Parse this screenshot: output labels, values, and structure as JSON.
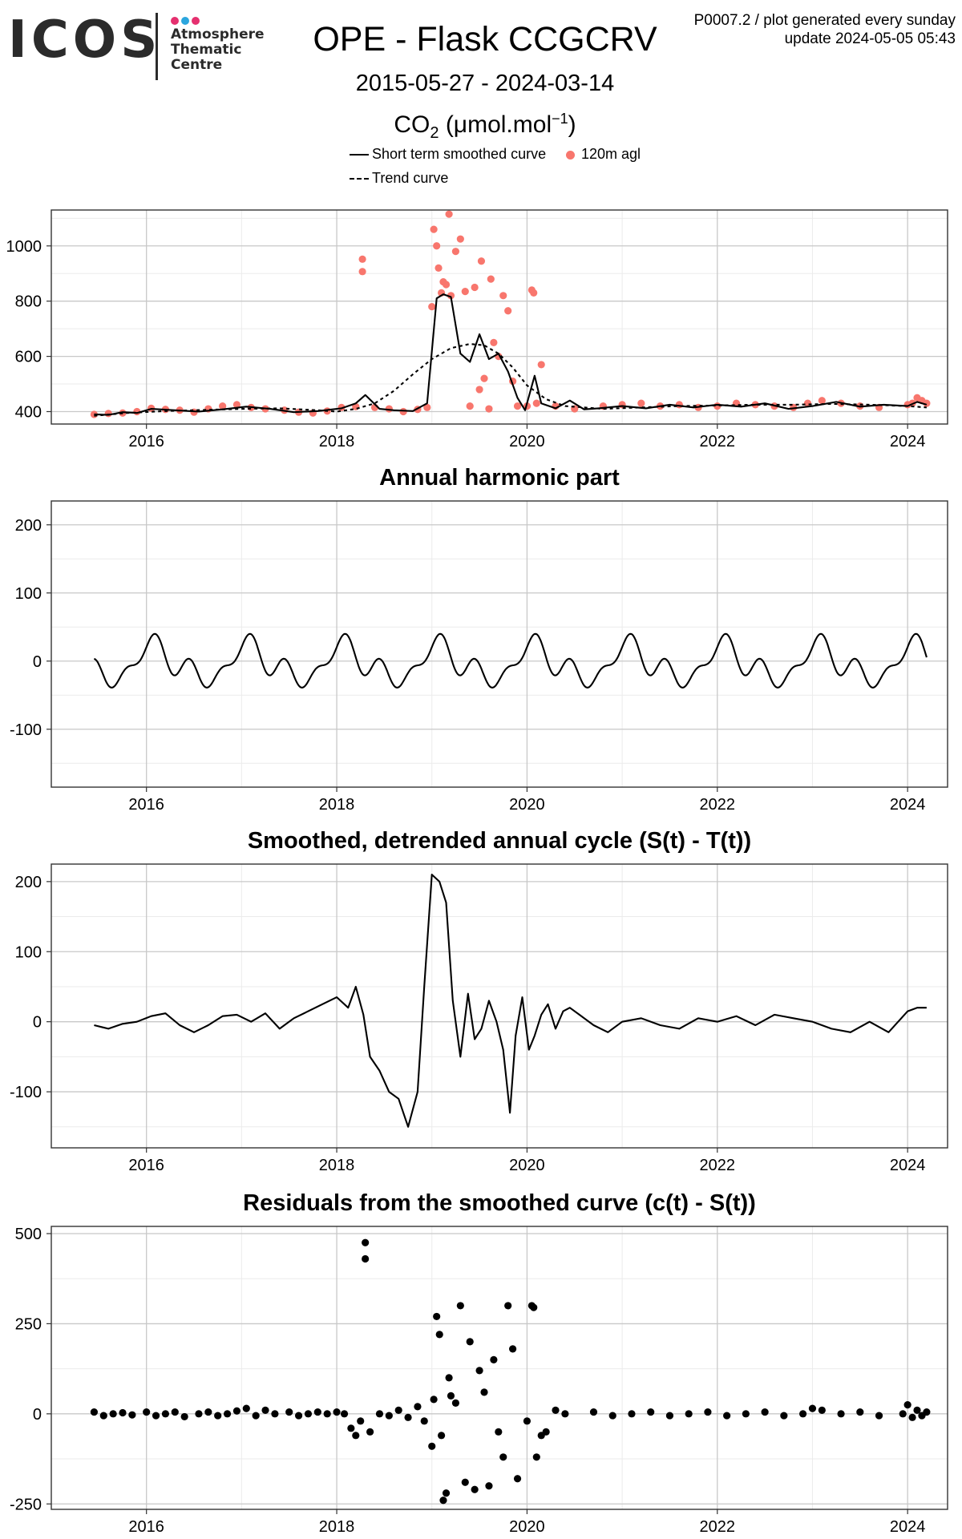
{
  "logo": {
    "word": "ICOS",
    "sub": [
      "Atmosphere",
      "Thematic",
      "Centre"
    ],
    "dot_colors": [
      "#E5306F",
      "#2BA6DE",
      "#E5306F"
    ]
  },
  "header": {
    "title": "OPE - Flask CCGCRV",
    "date_range": "2015-05-27 - 2024-03-14",
    "corner_line1": "P0007.2 / plot generated every sunday",
    "corner_line2": "update  2024-05-05 05:43",
    "unit_prefix": "CO",
    "unit_sub": "2",
    "unit_open": " (μmol.mol",
    "unit_sup": "−1",
    "unit_close": ")"
  },
  "legend": {
    "smooth_label": "Short term smoothed curve",
    "points_label": "120m agl",
    "trend_label": "Trend curve"
  },
  "colors": {
    "points": "#F8766D",
    "line": "#000000",
    "grid_major": "#c8c8c8",
    "grid_minor": "#ebebeb"
  },
  "chart_data": [
    {
      "type": "scatter",
      "panel": "co2",
      "title": "",
      "xlabel": "",
      "ylabel": "",
      "xlim": [
        2015.0,
        2024.42
      ],
      "ylim": [
        355,
        1130
      ],
      "x_ticks": [
        2016,
        2018,
        2020,
        2022,
        2024
      ],
      "y_ticks": [
        400,
        600,
        800,
        1000
      ],
      "grid": true,
      "legend_position": "top",
      "series": [
        {
          "name": "120m agl",
          "kind": "points",
          "x": [
            2015.45,
            2015.6,
            2015.75,
            2015.9,
            2016.05,
            2016.2,
            2016.35,
            2016.5,
            2016.65,
            2016.8,
            2016.95,
            2017.1,
            2017.25,
            2017.45,
            2017.6,
            2017.75,
            2017.9,
            2018.05,
            2018.2,
            2018.27,
            2018.27,
            2018.4,
            2018.55,
            2018.7,
            2018.85,
            2018.95,
            2019.0,
            2019.02,
            2019.05,
            2019.07,
            2019.1,
            2019.12,
            2019.15,
            2019.18,
            2019.2,
            2019.25,
            2019.3,
            2019.35,
            2019.4,
            2019.45,
            2019.5,
            2019.52,
            2019.55,
            2019.6,
            2019.62,
            2019.65,
            2019.7,
            2019.75,
            2019.8,
            2019.85,
            2019.9,
            2020.0,
            2020.05,
            2020.07,
            2020.1,
            2020.15,
            2020.3,
            2020.5,
            2020.8,
            2021.0,
            2021.2,
            2021.4,
            2021.6,
            2021.8,
            2022.0,
            2022.2,
            2022.4,
            2022.6,
            2022.8,
            2022.95,
            2023.1,
            2023.3,
            2023.5,
            2023.7,
            2024.0,
            2024.05,
            2024.1,
            2024.15,
            2024.2
          ],
          "y": [
            390,
            393,
            395,
            400,
            412,
            408,
            405,
            398,
            410,
            420,
            425,
            415,
            410,
            405,
            398,
            395,
            402,
            415,
            418,
            952,
            907,
            415,
            410,
            400,
            408,
            415,
            780,
            1060,
            1000,
            920,
            830,
            870,
            860,
            1115,
            820,
            980,
            1025,
            835,
            420,
            850,
            480,
            945,
            520,
            410,
            880,
            650,
            600,
            820,
            765,
            510,
            420,
            420,
            840,
            830,
            430,
            570,
            420,
            410,
            420,
            425,
            430,
            420,
            425,
            415,
            420,
            430,
            425,
            420,
            415,
            430,
            440,
            430,
            420,
            415,
            425,
            430,
            450,
            440,
            430
          ]
        },
        {
          "name": "Short term smoothed curve",
          "kind": "line",
          "x": [
            2015.45,
            2015.6,
            2015.75,
            2015.9,
            2016.05,
            2016.3,
            2016.55,
            2016.8,
            2017.05,
            2017.3,
            2017.55,
            2017.8,
            2018.05,
            2018.2,
            2018.3,
            2018.45,
            2018.6,
            2018.8,
            2018.95,
            2019.05,
            2019.12,
            2019.2,
            2019.3,
            2019.4,
            2019.5,
            2019.6,
            2019.7,
            2019.8,
            2019.9,
            2019.98,
            2020.08,
            2020.15,
            2020.3,
            2020.45,
            2020.6,
            2020.75,
            2021.0,
            2021.25,
            2021.5,
            2021.75,
            2022.0,
            2022.25,
            2022.5,
            2022.75,
            2023.0,
            2023.25,
            2023.5,
            2023.75,
            2024.0,
            2024.1,
            2024.2
          ],
          "y": [
            390,
            388,
            398,
            395,
            410,
            405,
            400,
            408,
            418,
            410,
            398,
            402,
            412,
            430,
            460,
            410,
            405,
            402,
            430,
            810,
            825,
            815,
            610,
            580,
            680,
            590,
            610,
            545,
            450,
            405,
            530,
            430,
            412,
            440,
            408,
            412,
            420,
            412,
            425,
            415,
            425,
            418,
            430,
            410,
            420,
            435,
            418,
            425,
            420,
            435,
            425
          ]
        },
        {
          "name": "Trend curve",
          "kind": "dashed",
          "x": [
            2015.45,
            2015.8,
            2016.2,
            2016.6,
            2017.0,
            2017.4,
            2017.8,
            2018.0,
            2018.2,
            2018.4,
            2018.6,
            2018.8,
            2019.0,
            2019.2,
            2019.4,
            2019.55,
            2019.7,
            2019.85,
            2020.0,
            2020.2,
            2020.4,
            2020.6,
            2020.8,
            2021.2,
            2021.6,
            2022.0,
            2022.4,
            2022.8,
            2023.2,
            2023.6,
            2024.0,
            2024.2
          ],
          "y": [
            385,
            395,
            402,
            406,
            410,
            412,
            405,
            400,
            410,
            430,
            475,
            535,
            590,
            630,
            645,
            640,
            610,
            560,
            495,
            445,
            420,
            415,
            410,
            415,
            420,
            422,
            425,
            425,
            428,
            425,
            420,
            415
          ]
        }
      ]
    },
    {
      "type": "line",
      "panel": "harmonic",
      "title": "Annual harmonic part",
      "xlabel": "",
      "ylabel": "",
      "xlim": [
        2015.0,
        2024.42
      ],
      "ylim": [
        -185,
        235
      ],
      "x_ticks": [
        2016,
        2018,
        2020,
        2022,
        2024
      ],
      "y_ticks": [
        -100,
        0,
        100,
        200
      ],
      "grid": true,
      "series": [
        {
          "name": "",
          "x": [],
          "y": []
        }
      ]
    },
    {
      "type": "line",
      "panel": "detrended",
      "title": "Smoothed, detrended annual cycle (S(t) - T(t))",
      "xlabel": "",
      "ylabel": "",
      "xlim": [
        2015.0,
        2024.42
      ],
      "ylim": [
        -180,
        225
      ],
      "x_ticks": [
        2016,
        2018,
        2020,
        2022,
        2024
      ],
      "y_ticks": [
        -100,
        0,
        100,
        200
      ],
      "grid": true,
      "series": [
        {
          "name": "",
          "x": [
            2015.45,
            2015.6,
            2015.75,
            2015.9,
            2016.05,
            2016.2,
            2016.35,
            2016.5,
            2016.65,
            2016.8,
            2016.95,
            2017.1,
            2017.25,
            2017.4,
            2017.55,
            2017.7,
            2017.85,
            2018.0,
            2018.12,
            2018.2,
            2018.28,
            2018.35,
            2018.45,
            2018.55,
            2018.65,
            2018.75,
            2018.85,
            2018.92,
            2019.0,
            2019.08,
            2019.15,
            2019.22,
            2019.3,
            2019.38,
            2019.45,
            2019.52,
            2019.6,
            2019.68,
            2019.75,
            2019.82,
            2019.88,
            2019.95,
            2020.02,
            2020.08,
            2020.15,
            2020.22,
            2020.3,
            2020.38,
            2020.45,
            2020.55,
            2020.7,
            2020.85,
            2021.0,
            2021.2,
            2021.4,
            2021.6,
            2021.8,
            2022.0,
            2022.2,
            2022.4,
            2022.6,
            2022.8,
            2023.0,
            2023.2,
            2023.4,
            2023.6,
            2023.8,
            2024.0,
            2024.1,
            2024.2
          ],
          "y": [
            -5,
            -10,
            -3,
            0,
            8,
            12,
            -5,
            -15,
            -5,
            8,
            10,
            0,
            12,
            -10,
            5,
            15,
            25,
            35,
            20,
            50,
            10,
            -50,
            -70,
            -100,
            -110,
            -150,
            -100,
            50,
            210,
            200,
            170,
            30,
            -50,
            40,
            -25,
            -10,
            30,
            0,
            -40,
            -130,
            -20,
            35,
            -40,
            -20,
            10,
            25,
            -10,
            15,
            20,
            10,
            -5,
            -15,
            0,
            5,
            -5,
            -10,
            5,
            0,
            8,
            -5,
            10,
            5,
            0,
            -10,
            -15,
            0,
            -15,
            15,
            20,
            20
          ]
        }
      ]
    },
    {
      "type": "scatter",
      "panel": "residuals",
      "title": "Residuals from the smoothed curve (c(t) - S(t))",
      "xlabel": "",
      "ylabel": "",
      "xlim": [
        2015.0,
        2024.42
      ],
      "ylim": [
        -265,
        520
      ],
      "x_ticks": [
        2016,
        2018,
        2020,
        2022,
        2024
      ],
      "y_ticks": [
        -250,
        0,
        250,
        500
      ],
      "grid": true,
      "series": [
        {
          "name": "",
          "x": [
            2015.45,
            2015.55,
            2015.65,
            2015.75,
            2015.85,
            2016.0,
            2016.1,
            2016.2,
            2016.3,
            2016.4,
            2016.55,
            2016.65,
            2016.75,
            2016.85,
            2016.95,
            2017.05,
            2017.15,
            2017.25,
            2017.35,
            2017.5,
            2017.6,
            2017.7,
            2017.8,
            2017.9,
            2018.0,
            2018.08,
            2018.15,
            2018.2,
            2018.25,
            2018.3,
            2018.3,
            2018.35,
            2018.45,
            2018.55,
            2018.65,
            2018.75,
            2018.85,
            2018.92,
            2019.0,
            2019.02,
            2019.05,
            2019.08,
            2019.1,
            2019.12,
            2019.15,
            2019.18,
            2019.2,
            2019.25,
            2019.3,
            2019.35,
            2019.4,
            2019.45,
            2019.5,
            2019.55,
            2019.6,
            2019.65,
            2019.7,
            2019.75,
            2019.8,
            2019.85,
            2019.9,
            2020.0,
            2020.05,
            2020.07,
            2020.1,
            2020.15,
            2020.2,
            2020.3,
            2020.4,
            2020.7,
            2020.9,
            2021.1,
            2021.3,
            2021.5,
            2021.7,
            2021.9,
            2022.1,
            2022.3,
            2022.5,
            2022.7,
            2022.9,
            2023.0,
            2023.1,
            2023.3,
            2023.5,
            2023.7,
            2023.95,
            2024.0,
            2024.05,
            2024.1,
            2024.15,
            2024.2
          ],
          "y": [
            5,
            -5,
            0,
            3,
            -3,
            5,
            -5,
            0,
            5,
            -8,
            0,
            5,
            -5,
            0,
            8,
            15,
            -5,
            10,
            0,
            5,
            -5,
            0,
            5,
            0,
            5,
            0,
            -40,
            -60,
            -20,
            475,
            430,
            -50,
            0,
            -5,
            10,
            -10,
            20,
            -20,
            -90,
            40,
            270,
            220,
            -60,
            -240,
            -220,
            100,
            50,
            30,
            300,
            -190,
            200,
            -210,
            120,
            60,
            -200,
            150,
            -50,
            -120,
            300,
            180,
            -180,
            -20,
            300,
            295,
            -120,
            -60,
            -50,
            10,
            0,
            5,
            -5,
            0,
            5,
            -5,
            0,
            5,
            -5,
            0,
            5,
            -5,
            0,
            15,
            10,
            0,
            5,
            -5,
            0,
            25,
            -10,
            10,
            -5,
            5
          ]
        }
      ]
    }
  ],
  "charts_meta": {
    "harmonic_amplitude_note": ""
  }
}
